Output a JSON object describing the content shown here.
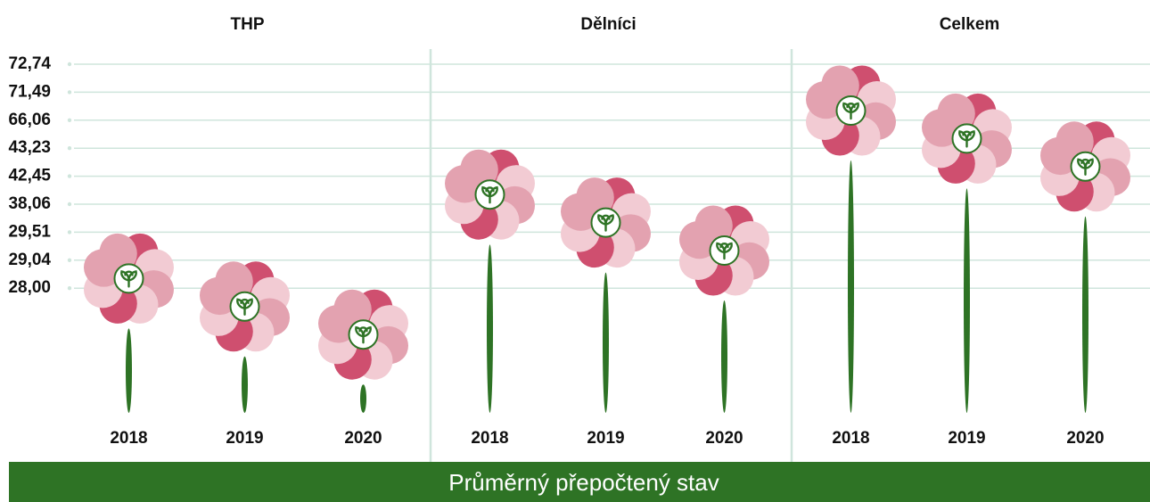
{
  "chart_data": {
    "type": "flower",
    "categories": [
      "2018",
      "2019",
      "2020"
    ],
    "groups": [
      {
        "name": "THP",
        "values": [
          29.51,
          29.04,
          28.0
        ]
      },
      {
        "name": "Dělníci",
        "values": [
          43.23,
          42.45,
          38.06
        ]
      },
      {
        "name": "Celkem",
        "values": [
          72.74,
          71.49,
          66.06
        ]
      }
    ],
    "yticks": [
      {
        "value": 72.74,
        "label": "72,74"
      },
      {
        "value": 71.49,
        "label": "71,49"
      },
      {
        "value": 66.06,
        "label": "66,06"
      },
      {
        "value": 43.23,
        "label": "43,23"
      },
      {
        "value": 42.45,
        "label": "42,45"
      },
      {
        "value": 38.06,
        "label": "38,06"
      },
      {
        "value": 29.51,
        "label": "29,51"
      },
      {
        "value": 29.04,
        "label": "29,04"
      },
      {
        "value": 28.0,
        "label": "28,00"
      }
    ],
    "xlabel": "Průměrný přepočtený stav",
    "grid": true,
    "colors": {
      "petal_dark": "#cf4f6f",
      "petal_mid": "#e3a2b0",
      "petal_light": "#f2cbd3",
      "stem": "#2e7325",
      "grid": "#cfe5dc"
    }
  }
}
